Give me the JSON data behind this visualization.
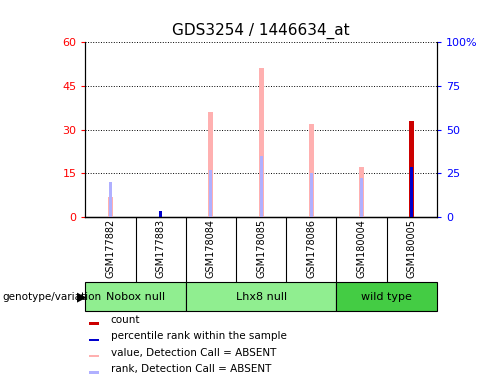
{
  "title": "GDS3254 / 1446634_at",
  "samples": [
    "GSM177882",
    "GSM177883",
    "GSM178084",
    "GSM178085",
    "GSM178086",
    "GSM180004",
    "GSM180005"
  ],
  "value_absent": [
    7.0,
    null,
    36.0,
    51.0,
    32.0,
    17.0,
    null
  ],
  "rank_absent": [
    12.0,
    null,
    16.0,
    21.0,
    15.0,
    13.5,
    null
  ],
  "count_present": [
    null,
    null,
    null,
    null,
    null,
    null,
    33.0
  ],
  "percentile_present": [
    null,
    null,
    null,
    null,
    null,
    null,
    17.0
  ],
  "small_blue": [
    null,
    2.0,
    null,
    null,
    null,
    null,
    null
  ],
  "small_pink": [
    7.0,
    null,
    null,
    null,
    null,
    null,
    null
  ],
  "ylim_left": [
    0,
    60
  ],
  "ylim_right": [
    0,
    100
  ],
  "yticks_left": [
    0,
    15,
    30,
    45,
    60
  ],
  "yticks_right": [
    0,
    25,
    50,
    75,
    100
  ],
  "ytick_labels_right": [
    "0",
    "25",
    "50",
    "75",
    "100%"
  ],
  "color_count": "#cc0000",
  "color_percentile": "#0000cc",
  "color_value_absent": "#ffb0b0",
  "color_rank_absent": "#b0b0ff",
  "group_nobox_color": "#90ee90",
  "group_lhx8_color": "#90ee90",
  "group_wild_color": "#44cc44",
  "sample_bg_color": "#c8c8c8",
  "legend_items": [
    {
      "color": "#cc0000",
      "label": "count"
    },
    {
      "color": "#0000cc",
      "label": "percentile rank within the sample"
    },
    {
      "color": "#ffb0b0",
      "label": "value, Detection Call = ABSENT"
    },
    {
      "color": "#b0b0ff",
      "label": "rank, Detection Call = ABSENT"
    }
  ]
}
